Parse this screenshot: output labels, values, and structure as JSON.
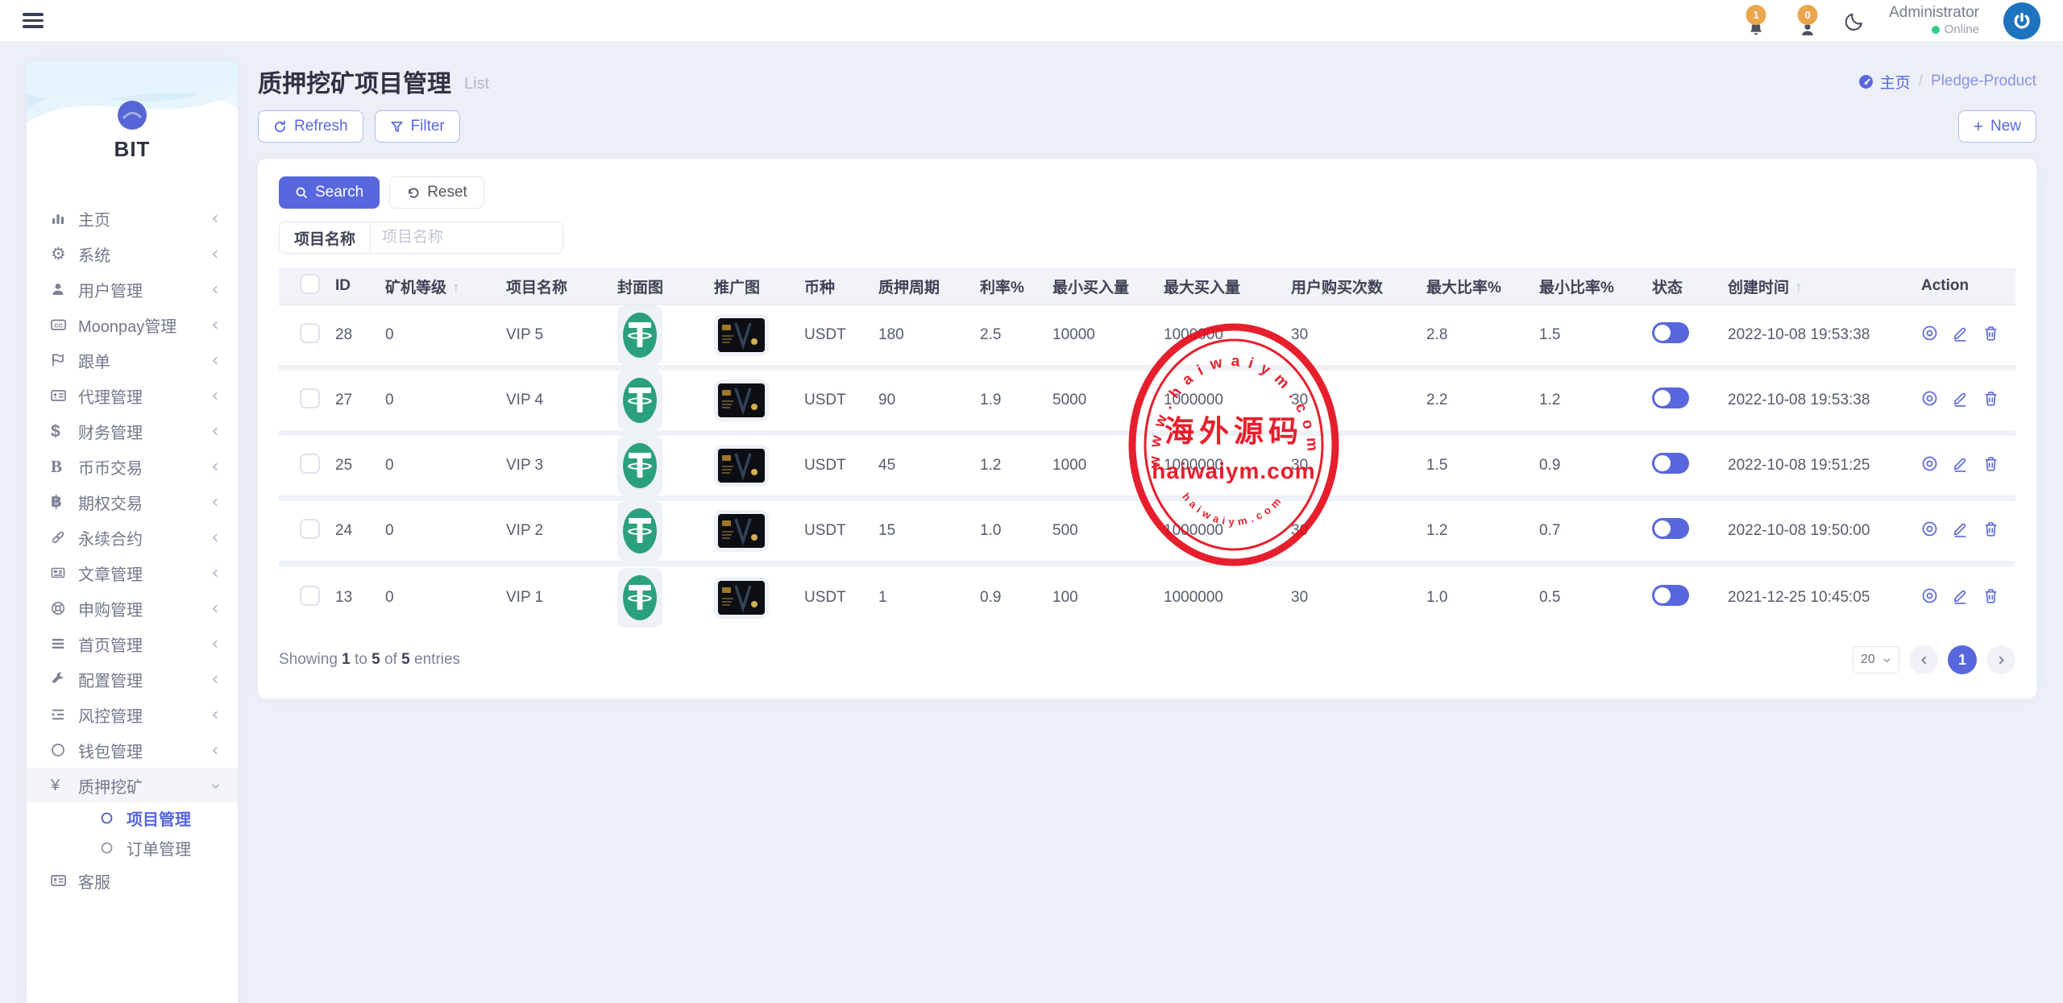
{
  "topbar": {
    "notification_badge": "1",
    "message_badge": "0",
    "user_name": "Administrator",
    "user_status": "Online"
  },
  "sidebar": {
    "brand": "BIT",
    "items": [
      {
        "key": "home",
        "icon": "bar-chart-icon",
        "label": "主页",
        "expandable": true
      },
      {
        "key": "system",
        "icon": "gear-icon",
        "label": "系统",
        "expandable": true
      },
      {
        "key": "users",
        "icon": "user-icon",
        "label": "用户管理",
        "expandable": true
      },
      {
        "key": "moonpay",
        "icon": "cc-icon",
        "label": "Moonpay管理",
        "expandable": true
      },
      {
        "key": "follow-orders",
        "icon": "flag-icon",
        "label": "跟单",
        "expandable": true
      },
      {
        "key": "agents",
        "icon": "id-card-icon",
        "label": "代理管理",
        "expandable": true
      },
      {
        "key": "finance",
        "icon": "dollar-icon",
        "label": "财务管理",
        "expandable": true
      },
      {
        "key": "spot-trading",
        "icon": "letter-b-icon",
        "label": "币币交易",
        "expandable": true
      },
      {
        "key": "options-trading",
        "icon": "bitcoin-icon",
        "label": "期权交易",
        "expandable": true
      },
      {
        "key": "perpetual-contracts",
        "icon": "chain-link-icon",
        "label": "永续合约",
        "expandable": true
      },
      {
        "key": "articles",
        "icon": "newspaper-icon",
        "label": "文章管理",
        "expandable": true
      },
      {
        "key": "subscriptions",
        "icon": "life-ring-icon",
        "label": "申购管理",
        "expandable": true
      },
      {
        "key": "homepage",
        "icon": "bars-icon",
        "label": "首页管理",
        "expandable": true
      },
      {
        "key": "config",
        "icon": "wrench-icon",
        "label": "配置管理",
        "expandable": true
      },
      {
        "key": "risk-control",
        "icon": "outdent-icon",
        "label": "风控管理",
        "expandable": true
      },
      {
        "key": "wallets",
        "icon": "circle-icon",
        "label": "钱包管理",
        "expandable": true
      },
      {
        "key": "pledge-mining",
        "icon": "yen-icon",
        "label": "质押挖矿",
        "expandable": true,
        "expanded": true,
        "children": [
          {
            "key": "projects",
            "label": "项目管理",
            "active": true
          },
          {
            "key": "orders",
            "label": "订单管理",
            "active": false
          }
        ]
      },
      {
        "key": "customer-service",
        "icon": "id-card-icon",
        "label": "客服",
        "expandable": false
      }
    ]
  },
  "page_header": {
    "title": "质押挖矿项目管理",
    "subtitle": "List",
    "breadcrumb_home": "主页",
    "breadcrumb_separator": "/",
    "breadcrumb_current": "Pledge-Product"
  },
  "toolbar": {
    "refresh_label": "Refresh",
    "filter_label": "Filter",
    "new_label": "New"
  },
  "filters": {
    "search_label": "Search",
    "reset_label": "Reset",
    "field_label": "项目名称",
    "field_placeholder": "项目名称",
    "field_value": ""
  },
  "table": {
    "sort_arrow": "↑",
    "columns": [
      {
        "label": "ID"
      },
      {
        "label": "矿机等级",
        "sorted": true
      },
      {
        "label": "项目名称"
      },
      {
        "label": "封面图"
      },
      {
        "label": "推广图"
      },
      {
        "label": "币种"
      },
      {
        "label": "质押周期"
      },
      {
        "label": "利率%"
      },
      {
        "label": "最小买入量"
      },
      {
        "label": "最大买入量"
      },
      {
        "label": "用户购买次数"
      },
      {
        "label": "最大比率%"
      },
      {
        "label": "最小比率%"
      },
      {
        "label": "状态"
      },
      {
        "label": "创建时间",
        "sorted": true
      },
      {
        "label": "Action"
      }
    ],
    "cover_icon": "tether-coin-image",
    "promo_icon": "promo-card-image",
    "action_icons": [
      "view-icon",
      "edit-icon",
      "delete-icon"
    ],
    "rows": [
      {
        "id": "28",
        "level": "0",
        "name": "VIP 5",
        "coin": "USDT",
        "period": "180",
        "rate": "2.5",
        "min_buy": "10000",
        "max_buy": "1000000",
        "buy_count": "30",
        "max_ratio": "2.8",
        "min_ratio": "1.5",
        "status": "on",
        "created": "2022-10-08 19:53:38"
      },
      {
        "id": "27",
        "level": "0",
        "name": "VIP 4",
        "coin": "USDT",
        "period": "90",
        "rate": "1.9",
        "min_buy": "5000",
        "max_buy": "1000000",
        "buy_count": "30",
        "max_ratio": "2.2",
        "min_ratio": "1.2",
        "status": "on",
        "created": "2022-10-08 19:53:38"
      },
      {
        "id": "25",
        "level": "0",
        "name": "VIP 3",
        "coin": "USDT",
        "period": "45",
        "rate": "1.2",
        "min_buy": "1000",
        "max_buy": "1000000",
        "buy_count": "30",
        "max_ratio": "1.5",
        "min_ratio": "0.9",
        "status": "on",
        "created": "2022-10-08 19:51:25"
      },
      {
        "id": "24",
        "level": "0",
        "name": "VIP 2",
        "coin": "USDT",
        "period": "15",
        "rate": "1.0",
        "min_buy": "500",
        "max_buy": "1000000",
        "buy_count": "30",
        "max_ratio": "1.2",
        "min_ratio": "0.7",
        "status": "on",
        "created": "2022-10-08 19:50:00"
      },
      {
        "id": "13",
        "level": "0",
        "name": "VIP 1",
        "coin": "USDT",
        "period": "1",
        "rate": "0.9",
        "min_buy": "100",
        "max_buy": "1000000",
        "buy_count": "30",
        "max_ratio": "1.0",
        "min_ratio": "0.5",
        "status": "on",
        "created": "2021-12-25 10:45:05"
      }
    ]
  },
  "pager": {
    "summary": {
      "prefix": "Showing",
      "from": "1",
      "to_word": "to",
      "to": "5",
      "of_word": "of",
      "total": "5",
      "suffix": "entries"
    },
    "page_size": "20",
    "page": "1"
  },
  "watermark": {
    "top_arc": "www.haiwaiym.com",
    "center_cn": "海外源码",
    "center_en": "haiwaiym.com",
    "bottom_arc": "haiwaiym.com",
    "color": "#e60f1e"
  },
  "colors": {
    "accent": "#5867dd",
    "badge_orange": "#eaa64d",
    "online_green": "#31ce8b",
    "tether_green": "#2aa17c",
    "stamp_red": "#e60f1e"
  }
}
